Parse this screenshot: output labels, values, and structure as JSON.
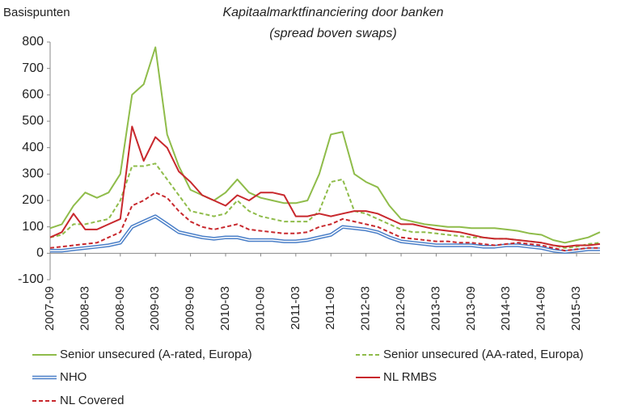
{
  "chart_data": {
    "type": "line",
    "title": "Kapitaalmarktfinanciering door banken",
    "subtitle": "(spread boven swaps)",
    "y_label": "Basispunten",
    "categories": [
      "2007-09",
      null,
      null,
      "2008-03",
      null,
      null,
      "2008-09",
      null,
      null,
      "2009-03",
      null,
      null,
      "2009-09",
      null,
      null,
      "2010-03",
      null,
      null,
      "2010-09",
      null,
      null,
      "2011-03",
      null,
      null,
      "2011-09",
      null,
      null,
      "2012-03",
      null,
      null,
      "2012-09",
      null,
      null,
      "2013-03",
      null,
      null,
      "2013-09",
      null,
      null,
      "2014-03",
      null,
      null,
      "2014-09",
      null,
      null,
      "2015-03",
      null,
      null
    ],
    "ylim": [
      -100,
      800
    ],
    "yticks": [
      -100,
      0,
      100,
      200,
      300,
      400,
      500,
      600,
      700,
      800
    ],
    "grid": false,
    "series": [
      {
        "name": "Senior unsecured (A-rated, Europa)",
        "color": "#8fbc4a",
        "dashed": false,
        "double": false,
        "values": [
          95,
          110,
          180,
          230,
          210,
          230,
          300,
          600,
          640,
          780,
          450,
          330,
          240,
          220,
          200,
          230,
          280,
          230,
          210,
          200,
          190,
          190,
          200,
          300,
          450,
          460,
          300,
          270,
          250,
          180,
          130,
          120,
          110,
          105,
          100,
          100,
          95,
          95,
          95,
          90,
          85,
          75,
          70,
          50,
          40,
          50,
          60,
          80
        ]
      },
      {
        "name": "Senior unsecured (AA-rated, Europa)",
        "color": "#8fbc4a",
        "dashed": true,
        "double": false,
        "values": [
          60,
          70,
          110,
          110,
          120,
          130,
          200,
          330,
          330,
          340,
          280,
          220,
          160,
          150,
          140,
          150,
          200,
          160,
          140,
          130,
          120,
          120,
          120,
          160,
          270,
          280,
          160,
          150,
          130,
          110,
          90,
          80,
          80,
          75,
          70,
          65,
          60,
          60,
          55,
          55,
          50,
          45,
          40,
          30,
          20,
          25,
          35,
          40
        ]
      },
      {
        "name": "NHO",
        "color": "#4a7fc8",
        "dashed": false,
        "double": true,
        "values": [
          10,
          10,
          15,
          20,
          25,
          30,
          40,
          100,
          120,
          140,
          110,
          80,
          70,
          60,
          55,
          60,
          60,
          50,
          50,
          50,
          45,
          45,
          50,
          60,
          70,
          100,
          95,
          90,
          80,
          60,
          45,
          40,
          35,
          30,
          30,
          30,
          30,
          25,
          25,
          30,
          30,
          25,
          20,
          10,
          5,
          10,
          15,
          15
        ]
      },
      {
        "name": "NL RMBS",
        "color": "#c8282d",
        "dashed": false,
        "double": false,
        "values": [
          60,
          80,
          150,
          90,
          90,
          110,
          130,
          480,
          350,
          440,
          400,
          310,
          270,
          220,
          200,
          180,
          220,
          200,
          230,
          230,
          220,
          140,
          140,
          150,
          140,
          150,
          160,
          160,
          150,
          130,
          110,
          110,
          100,
          90,
          85,
          80,
          70,
          60,
          55,
          55,
          50,
          45,
          40,
          30,
          25,
          30,
          30,
          35
        ]
      },
      {
        "name": "NL Covered",
        "color": "#c8282d",
        "dashed": true,
        "double": false,
        "values": [
          20,
          25,
          30,
          35,
          40,
          60,
          80,
          180,
          200,
          230,
          210,
          160,
          120,
          100,
          90,
          100,
          110,
          90,
          85,
          80,
          75,
          75,
          80,
          100,
          110,
          130,
          120,
          110,
          100,
          80,
          60,
          55,
          50,
          45,
          45,
          40,
          40,
          35,
          30,
          35,
          40,
          35,
          30,
          20,
          10,
          15,
          20,
          20
        ]
      }
    ]
  }
}
